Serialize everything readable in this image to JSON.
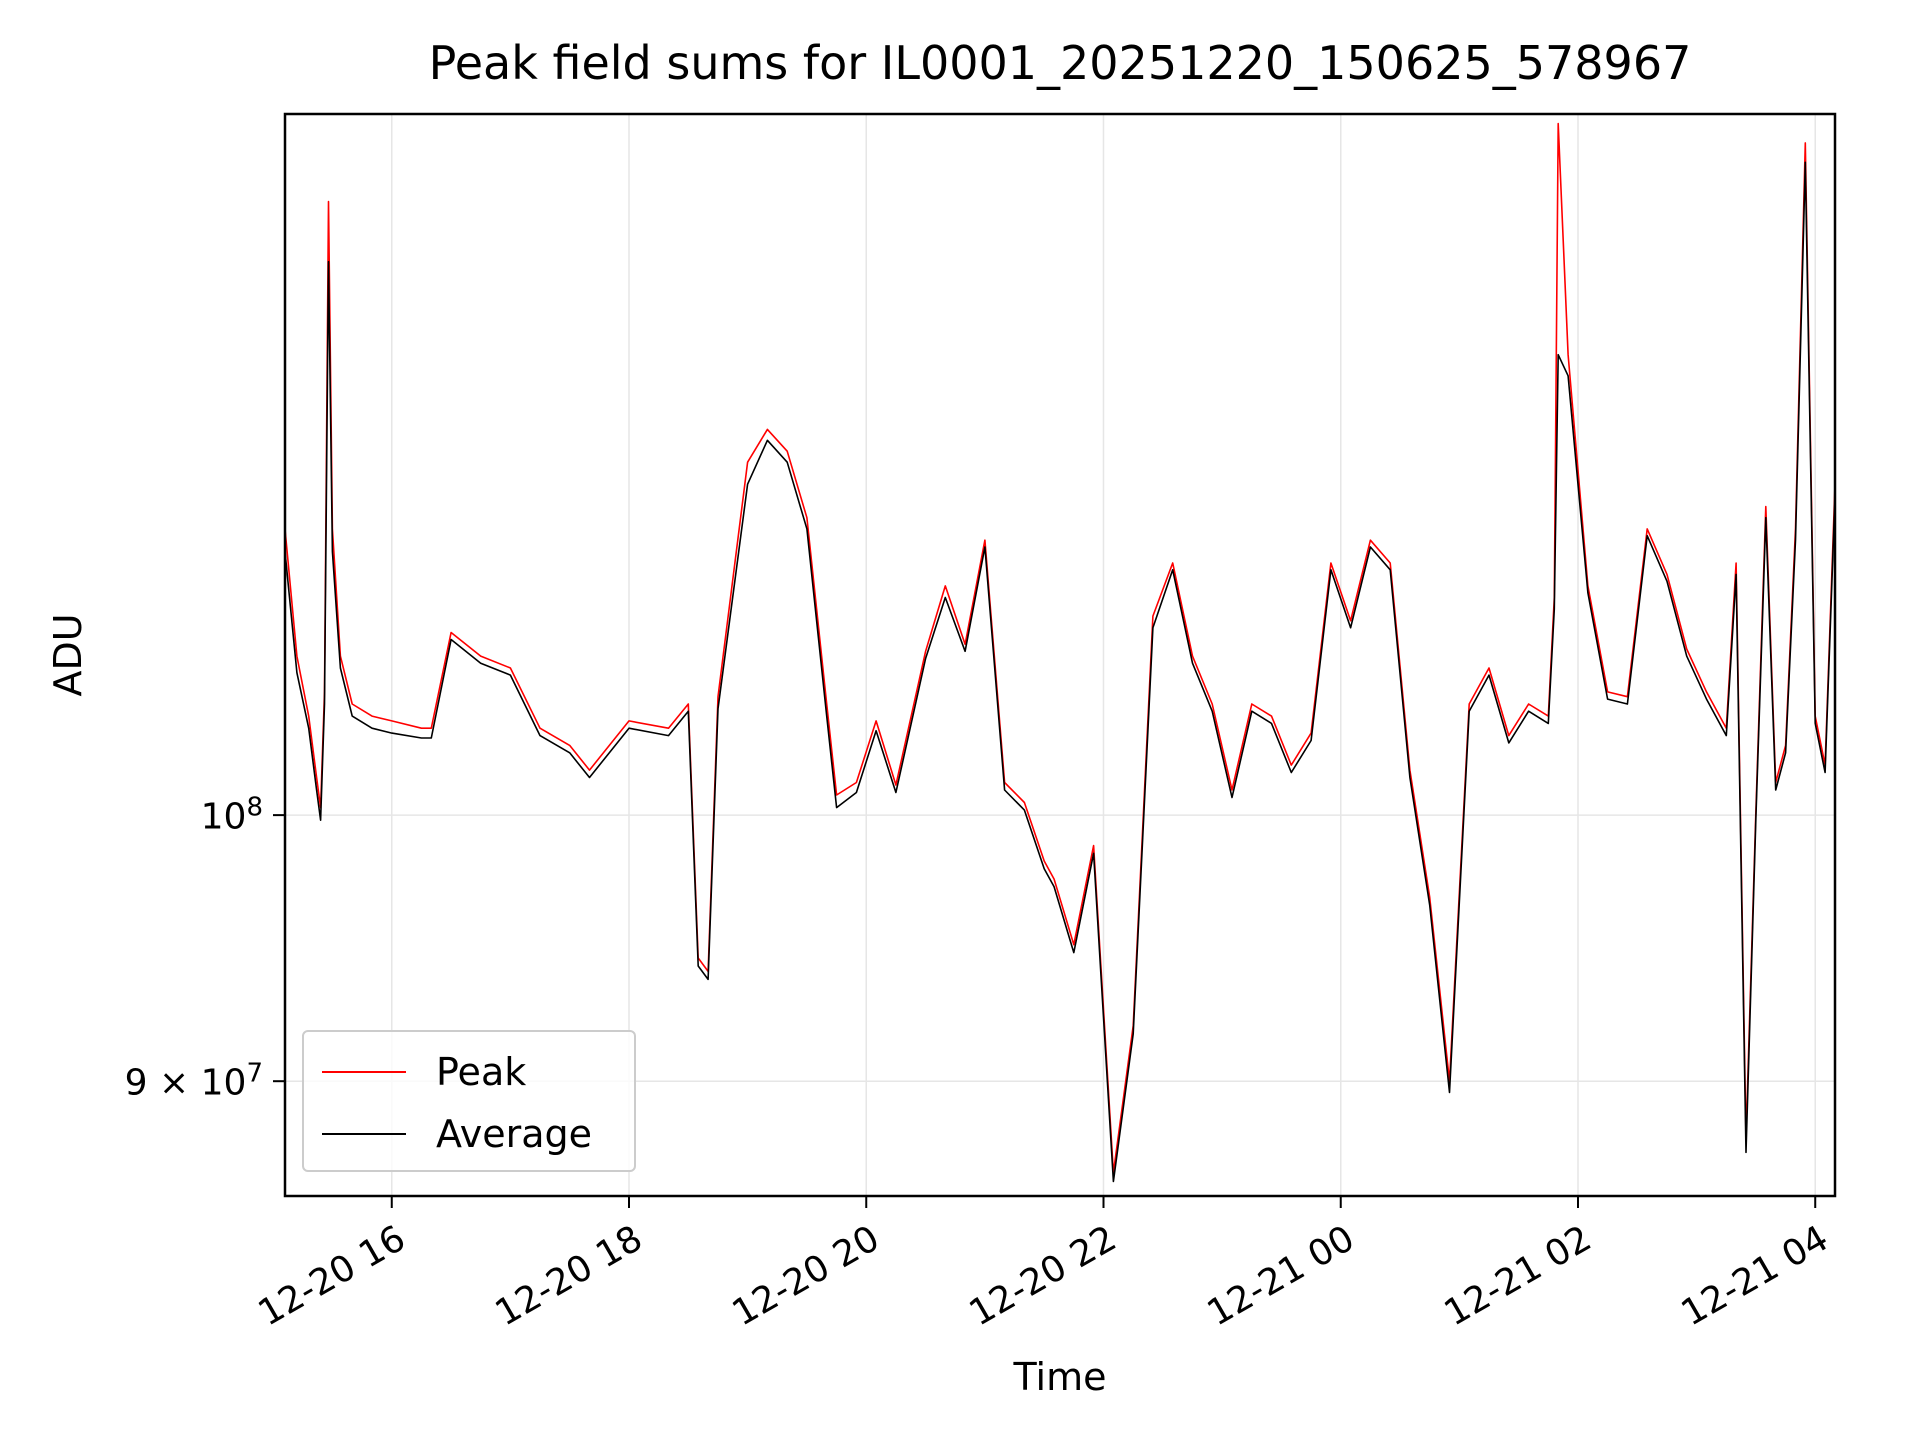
{
  "chart_data": {
    "type": "line",
    "title": "Peak field sums for IL0001_20251220_150625_578967",
    "xlabel": "Time",
    "ylabel": "ADU",
    "y_scale": "log",
    "ylim": [
      86000000,
      132000000
    ],
    "xlim": [
      "2025-12-20 15:06",
      "2025-12-21 04:10"
    ],
    "grid": true,
    "legend_position": "lower-left",
    "x_tick_labels": [
      "12-20 16",
      "12-20 18",
      "12-20 20",
      "12-20 22",
      "12-21 00",
      "12-21 02",
      "12-21 04"
    ],
    "x_ticks": [
      "2025-12-20 16:00",
      "2025-12-20 18:00",
      "2025-12-20 20:00",
      "2025-12-20 22:00",
      "2025-12-21 00:00",
      "2025-12-21 02:00",
      "2025-12-21 04:00"
    ],
    "y_ticks": [
      {
        "value": 100000000,
        "base": "10",
        "exp": "8",
        "mantissa": ""
      },
      {
        "value": 90000000,
        "base": "10",
        "exp": "7",
        "mantissa": "9 × "
      }
    ],
    "colors": {
      "Peak": "#ff0000",
      "Average": "#000000",
      "grid": "#e6e6e6"
    },
    "series": [
      {
        "name": "Peak",
        "x": [
          "2025-12-20 15:06",
          "2025-12-20 15:12",
          "2025-12-20 15:18",
          "2025-12-20 15:22",
          "2025-12-20 15:24",
          "2025-12-20 15:26",
          "2025-12-20 15:28",
          "2025-12-20 15:30",
          "2025-12-20 15:34",
          "2025-12-20 15:40",
          "2025-12-20 15:50",
          "2025-12-20 16:00",
          "2025-12-20 16:15",
          "2025-12-20 16:20",
          "2025-12-20 16:30",
          "2025-12-20 16:45",
          "2025-12-20 17:00",
          "2025-12-20 17:15",
          "2025-12-20 17:30",
          "2025-12-20 17:40",
          "2025-12-20 18:00",
          "2025-12-20 18:20",
          "2025-12-20 18:30",
          "2025-12-20 18:35",
          "2025-12-20 18:40",
          "2025-12-20 18:45",
          "2025-12-20 19:00",
          "2025-12-20 19:10",
          "2025-12-20 19:20",
          "2025-12-20 19:30",
          "2025-12-20 19:40",
          "2025-12-20 19:45",
          "2025-12-20 19:55",
          "2025-12-20 20:05",
          "2025-12-20 20:15",
          "2025-12-20 20:30",
          "2025-12-20 20:40",
          "2025-12-20 20:50",
          "2025-12-20 21:00",
          "2025-12-20 21:10",
          "2025-12-20 21:20",
          "2025-12-20 21:30",
          "2025-12-20 21:35",
          "2025-12-20 21:45",
          "2025-12-20 21:55",
          "2025-12-20 22:05",
          "2025-12-20 22:15",
          "2025-12-20 22:25",
          "2025-12-20 22:35",
          "2025-12-20 22:45",
          "2025-12-20 22:55",
          "2025-12-20 23:05",
          "2025-12-20 23:15",
          "2025-12-20 23:25",
          "2025-12-20 23:35",
          "2025-12-20 23:45",
          "2025-12-20 23:55",
          "2025-12-21 00:05",
          "2025-12-21 00:15",
          "2025-12-21 00:25",
          "2025-12-21 00:35",
          "2025-12-21 00:45",
          "2025-12-21 00:55",
          "2025-12-21 01:05",
          "2025-12-21 01:15",
          "2025-12-21 01:25",
          "2025-12-21 01:35",
          "2025-12-21 01:45",
          "2025-12-21 01:48",
          "2025-12-21 01:50",
          "2025-12-21 01:55",
          "2025-12-21 02:05",
          "2025-12-21 02:15",
          "2025-12-21 02:25",
          "2025-12-21 02:35",
          "2025-12-21 02:45",
          "2025-12-21 02:55",
          "2025-12-21 03:05",
          "2025-12-21 03:15",
          "2025-12-21 03:20",
          "2025-12-21 03:25",
          "2025-12-21 03:30",
          "2025-12-21 03:35",
          "2025-12-21 03:40",
          "2025-12-21 03:45",
          "2025-12-21 03:50",
          "2025-12-21 03:55",
          "2025-12-21 04:00",
          "2025-12-21 04:05",
          "2025-12-21 04:10"
        ],
        "y": [
          112000000,
          106500000,
          104000000,
          101500000,
          100300000,
          105000000,
          127500000,
          112000000,
          106500000,
          104500000,
          104000000,
          103800000,
          103500000,
          103500000,
          107500000,
          106500000,
          106000000,
          103500000,
          102800000,
          101800000,
          103800000,
          103500000,
          104500000,
          94500000,
          94000000,
          104800000,
          115000000,
          116500000,
          115500000,
          112500000,
          104500000,
          100800000,
          101300000,
          103800000,
          101200000,
          106700000,
          109500000,
          107000000,
          111500000,
          101300000,
          100500000,
          98200000,
          97500000,
          95000000,
          98800000,
          86800000,
          92000000,
          108200000,
          110500000,
          106500000,
          104500000,
          101000000,
          104500000,
          104000000,
          102000000,
          103300000,
          110500000,
          108000000,
          111500000,
          110500000,
          101800000,
          96800000,
          90000000,
          104500000,
          106000000,
          103200000,
          104500000,
          104000000,
          109000000,
          131500000,
          120000000,
          109500000,
          105000000,
          104800000,
          112000000,
          110000000,
          106800000,
          105000000,
          103500000,
          110500000,
          88000000,
          100200000,
          113000000,
          101300000,
          102800000,
          112000000,
          130500000,
          104000000,
          102000000,
          114000000
        ]
      },
      {
        "name": "Average",
        "x": [
          "2025-12-20 15:06",
          "2025-12-20 15:12",
          "2025-12-20 15:18",
          "2025-12-20 15:22",
          "2025-12-20 15:24",
          "2025-12-20 15:26",
          "2025-12-20 15:28",
          "2025-12-20 15:30",
          "2025-12-20 15:34",
          "2025-12-20 15:40",
          "2025-12-20 15:50",
          "2025-12-20 16:00",
          "2025-12-20 16:15",
          "2025-12-20 16:20",
          "2025-12-20 16:30",
          "2025-12-20 16:45",
          "2025-12-20 17:00",
          "2025-12-20 17:15",
          "2025-12-20 17:30",
          "2025-12-20 17:40",
          "2025-12-20 18:00",
          "2025-12-20 18:20",
          "2025-12-20 18:30",
          "2025-12-20 18:35",
          "2025-12-20 18:40",
          "2025-12-20 18:45",
          "2025-12-20 19:00",
          "2025-12-20 19:10",
          "2025-12-20 19:20",
          "2025-12-20 19:30",
          "2025-12-20 19:40",
          "2025-12-20 19:45",
          "2025-12-20 19:55",
          "2025-12-20 20:05",
          "2025-12-20 20:15",
          "2025-12-20 20:30",
          "2025-12-20 20:40",
          "2025-12-20 20:50",
          "2025-12-20 21:00",
          "2025-12-20 21:10",
          "2025-12-20 21:20",
          "2025-12-20 21:30",
          "2025-12-20 21:35",
          "2025-12-20 21:45",
          "2025-12-20 21:55",
          "2025-12-20 22:05",
          "2025-12-20 22:15",
          "2025-12-20 22:25",
          "2025-12-20 22:35",
          "2025-12-20 22:45",
          "2025-12-20 22:55",
          "2025-12-20 23:05",
          "2025-12-20 23:15",
          "2025-12-20 23:25",
          "2025-12-20 23:35",
          "2025-12-20 23:45",
          "2025-12-20 23:55",
          "2025-12-21 00:05",
          "2025-12-21 00:15",
          "2025-12-21 00:25",
          "2025-12-21 00:35",
          "2025-12-21 00:45",
          "2025-12-21 00:55",
          "2025-12-21 01:05",
          "2025-12-21 01:15",
          "2025-12-21 01:25",
          "2025-12-21 01:35",
          "2025-12-21 01:45",
          "2025-12-21 01:48",
          "2025-12-21 01:50",
          "2025-12-21 01:55",
          "2025-12-21 02:05",
          "2025-12-21 02:15",
          "2025-12-21 02:25",
          "2025-12-21 02:35",
          "2025-12-21 02:45",
          "2025-12-21 02:55",
          "2025-12-21 03:05",
          "2025-12-21 03:15",
          "2025-12-21 03:20",
          "2025-12-21 03:25",
          "2025-12-21 03:30",
          "2025-12-21 03:35",
          "2025-12-21 03:40",
          "2025-12-21 03:45",
          "2025-12-21 03:50",
          "2025-12-21 03:55",
          "2025-12-21 04:00",
          "2025-12-21 04:05",
          "2025-12-21 04:10"
        ],
        "y": [
          111000000,
          105800000,
          103500000,
          101000000,
          99800000,
          104500000,
          124500000,
          111000000,
          106000000,
          104000000,
          103500000,
          103300000,
          103100000,
          103100000,
          107200000,
          106200000,
          105700000,
          103200000,
          102500000,
          101500000,
          103500000,
          103200000,
          104200000,
          94200000,
          93700000,
          104300000,
          114000000,
          116000000,
          115000000,
          112000000,
          104000000,
          100300000,
          100900000,
          103400000,
          100900000,
          106400000,
          109000000,
          106700000,
          111200000,
          101000000,
          100200000,
          97900000,
          97200000,
          94700000,
          98500000,
          86500000,
          91700000,
          107700000,
          110200000,
          106200000,
          104200000,
          100700000,
          104200000,
          103700000,
          101700000,
          103000000,
          110200000,
          107700000,
          111200000,
          110200000,
          101500000,
          96500000,
          89600000,
          104200000,
          105700000,
          102900000,
          104200000,
          103700000,
          108500000,
          120000000,
          119000000,
          109200000,
          104700000,
          104500000,
          111700000,
          109700000,
          106500000,
          104700000,
          103200000,
          110000000,
          87500000,
          99900000,
          112500000,
          101000000,
          102500000,
          111500000,
          129500000,
          103700000,
          101700000,
          113500000
        ]
      }
    ]
  }
}
